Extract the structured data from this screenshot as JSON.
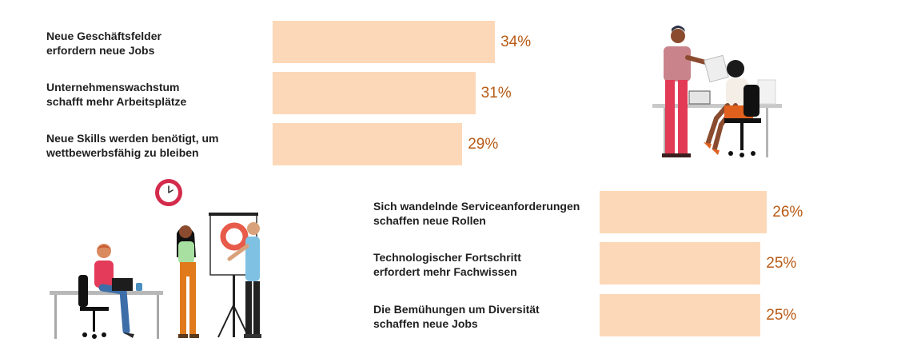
{
  "colors": {
    "bar": "#fdd8b8",
    "value_text": "#b85a14",
    "label_text": "#1f1f1f"
  },
  "chart_data": [
    {
      "type": "bar",
      "orientation": "horizontal",
      "categories": [
        [
          "Neue Geschäftsfelder",
          "erfordern neue Jobs"
        ],
        [
          "Unternehmenswachstum",
          "schafft mehr Arbeitsplätze"
        ],
        [
          "Neue Skills werden benötigt, um",
          "wettbewerbsfähig zu bleiben"
        ]
      ],
      "values": [
        34,
        31,
        29
      ],
      "value_labels": [
        "34%",
        "31%",
        "29%"
      ],
      "unit": "%",
      "xlim": [
        0,
        100
      ]
    },
    {
      "type": "bar",
      "orientation": "horizontal",
      "categories": [
        [
          "Sich wandelnde Serviceanforderungen",
          "schaffen neue Rollen"
        ],
        [
          "Technologischer Fortschritt",
          "erfordert mehr Fachwissen"
        ],
        [
          "Die Bemühungen um Diversität",
          "schaffen neue Jobs"
        ]
      ],
      "values": [
        26,
        25,
        25
      ],
      "value_labels": [
        "26%",
        "25%",
        "25%"
      ],
      "unit": "%",
      "xlim": [
        0,
        100
      ]
    }
  ],
  "illustrations": [
    {
      "icon": "two-people-reviewing-documents-at-desk-icon"
    },
    {
      "icon": "wall-clock-icon"
    },
    {
      "icon": "person-working-at-laptop-desk-icon"
    },
    {
      "icon": "two-people-presenting-at-flipchart-icon"
    }
  ]
}
